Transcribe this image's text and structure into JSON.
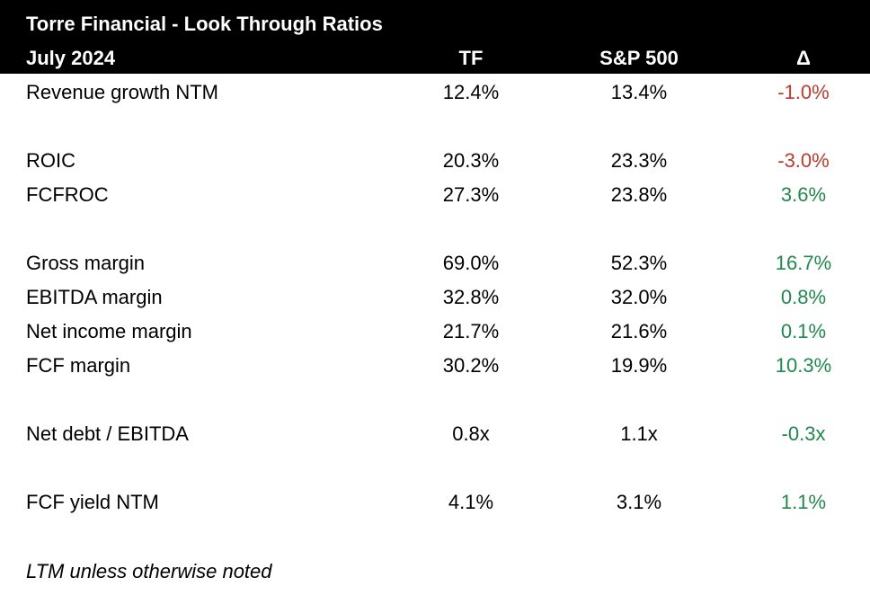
{
  "header": {
    "title": "Torre Financial - Look Through Ratios",
    "period": "July 2024",
    "col_tf": "TF",
    "col_sp": "S&P 500",
    "col_delta": "Δ"
  },
  "colors": {
    "header_bg": "#000000",
    "negative": "#c0392b",
    "positive": "#1e8a4c"
  },
  "rows": [
    {
      "label": "Revenue growth NTM",
      "tf": "12.4%",
      "sp": "13.4%",
      "delta": "-1.0%",
      "sign": "neg"
    },
    {
      "label": "ROIC",
      "tf": "20.3%",
      "sp": "23.3%",
      "delta": "-3.0%",
      "sign": "neg"
    },
    {
      "label": "FCFROC",
      "tf": "27.3%",
      "sp": "23.8%",
      "delta": "3.6%",
      "sign": "pos"
    },
    {
      "label": "Gross margin",
      "tf": "69.0%",
      "sp": "52.3%",
      "delta": "16.7%",
      "sign": "pos"
    },
    {
      "label": "EBITDA margin",
      "tf": "32.8%",
      "sp": "32.0%",
      "delta": "0.8%",
      "sign": "pos"
    },
    {
      "label": "Net income margin",
      "tf": "21.7%",
      "sp": "21.6%",
      "delta": "0.1%",
      "sign": "pos"
    },
    {
      "label": "FCF margin",
      "tf": "30.2%",
      "sp": "19.9%",
      "delta": "10.3%",
      "sign": "pos"
    },
    {
      "label": "Net debt / EBITDA",
      "tf": "0.8x",
      "sp": "1.1x",
      "delta": "-0.3x",
      "sign": "pos"
    },
    {
      "label": "FCF yield NTM",
      "tf": "4.1%",
      "sp": "3.1%",
      "delta": "1.1%",
      "sign": "pos"
    }
  ],
  "footnote": "LTM unless otherwise noted"
}
